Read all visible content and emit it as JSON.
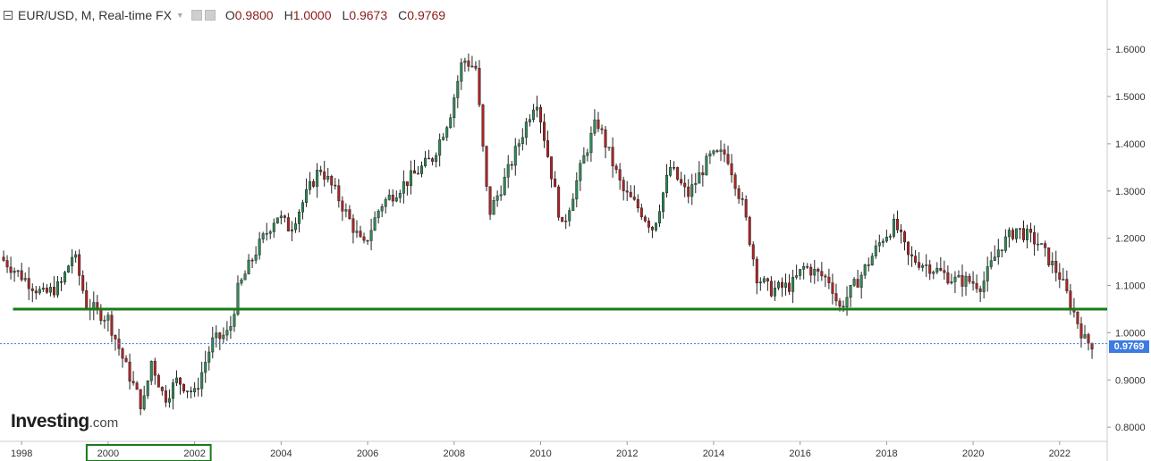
{
  "header": {
    "symbol": "EUR/USD, M, Real-time FX",
    "ohlc": [
      {
        "k": "O",
        "v": "0.9800"
      },
      {
        "k": "H",
        "v": "1.0000"
      },
      {
        "k": "L",
        "v": "0.9673"
      },
      {
        "k": "C",
        "v": "0.9769"
      }
    ]
  },
  "logo": {
    "main": "Investing",
    "domain": ".com"
  },
  "price_badge": "0.9769",
  "colors": {
    "up": "#2e8b57",
    "down": "#b22222",
    "support": "#1a7a1a",
    "current": "#3c7be0",
    "axis": "#cccccc"
  },
  "chart_data": {
    "type": "candlestick",
    "title": "",
    "xlabel": "",
    "ylabel": "",
    "xlim": [
      1997.5,
      2023.1
    ],
    "ylim": [
      0.77,
      1.64
    ],
    "x_ticks": [
      "1998",
      "2000",
      "2002",
      "2004",
      "2006",
      "2008",
      "2010",
      "2012",
      "2014",
      "2016",
      "2018",
      "2020",
      "2022"
    ],
    "y_ticks": [
      "0.8000",
      "0.9000",
      "1.0000",
      "1.1000",
      "1.2000",
      "1.3000",
      "1.4000",
      "1.5000",
      "1.6000"
    ],
    "support_level": 1.05,
    "current_price": 0.9769,
    "highlight_range": [
      2000,
      2002
    ],
    "close_path": [
      [
        1997.5,
        1.16
      ],
      [
        1998.0,
        1.12
      ],
      [
        1998.5,
        1.08
      ],
      [
        1998.9,
        1.1
      ],
      [
        1999.2,
        1.17
      ],
      [
        1999.5,
        1.06
      ],
      [
        2000.0,
        1.03
      ],
      [
        2000.4,
        0.93
      ],
      [
        2000.8,
        0.84
      ],
      [
        2001.0,
        0.94
      ],
      [
        2001.3,
        0.86
      ],
      [
        2001.6,
        0.9
      ],
      [
        2002.0,
        0.87
      ],
      [
        2002.4,
        0.98
      ],
      [
        2002.8,
        1.0
      ],
      [
        2003.0,
        1.09
      ],
      [
        2003.4,
        1.17
      ],
      [
        2003.9,
        1.25
      ],
      [
        2004.2,
        1.22
      ],
      [
        2004.9,
        1.35
      ],
      [
        2005.3,
        1.29
      ],
      [
        2005.9,
        1.18
      ],
      [
        2006.3,
        1.27
      ],
      [
        2006.9,
        1.32
      ],
      [
        2007.5,
        1.37
      ],
      [
        2007.9,
        1.46
      ],
      [
        2008.2,
        1.58
      ],
      [
        2008.5,
        1.56
      ],
      [
        2008.8,
        1.25
      ],
      [
        2009.2,
        1.33
      ],
      [
        2009.9,
        1.5
      ],
      [
        2010.2,
        1.36
      ],
      [
        2010.5,
        1.22
      ],
      [
        2011.0,
        1.37
      ],
      [
        2011.3,
        1.45
      ],
      [
        2011.9,
        1.3
      ],
      [
        2012.3,
        1.26
      ],
      [
        2012.6,
        1.22
      ],
      [
        2013.0,
        1.35
      ],
      [
        2013.4,
        1.29
      ],
      [
        2013.9,
        1.37
      ],
      [
        2014.3,
        1.38
      ],
      [
        2014.7,
        1.26
      ],
      [
        2015.0,
        1.12
      ],
      [
        2015.3,
        1.09
      ],
      [
        2015.8,
        1.1
      ],
      [
        2016.1,
        1.14
      ],
      [
        2016.7,
        1.11
      ],
      [
        2016.9,
        1.05
      ],
      [
        2017.4,
        1.12
      ],
      [
        2017.9,
        1.2
      ],
      [
        2018.2,
        1.23
      ],
      [
        2018.5,
        1.16
      ],
      [
        2019.0,
        1.14
      ],
      [
        2019.6,
        1.11
      ],
      [
        2019.9,
        1.11
      ],
      [
        2020.2,
        1.1
      ],
      [
        2020.6,
        1.18
      ],
      [
        2021.0,
        1.22
      ],
      [
        2021.5,
        1.19
      ],
      [
        2022.0,
        1.12
      ],
      [
        2022.3,
        1.05
      ],
      [
        2022.6,
        0.98
      ],
      [
        2022.75,
        0.9769
      ]
    ]
  }
}
